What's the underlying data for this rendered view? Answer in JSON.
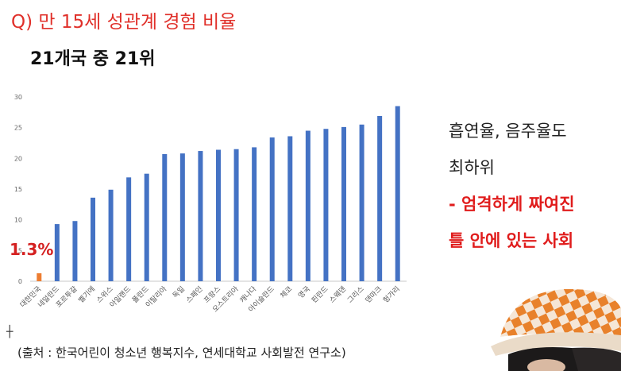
{
  "question": "Q) 만 15세 성관계 경험 비율",
  "subtitle": "21개국 중 21위",
  "highlight_label": "1.3%",
  "source": "(출처 : 한국어린이 청소년 행복지수, 연세대학교 사회발전 연구소)",
  "notes": [
    "흡연율, 음주율도",
    "최하위",
    "- 엄격하게 짜여진",
    "틀 안에 있는 사회"
  ],
  "colors": {
    "question": "#e0302a",
    "bar": "#4472c4",
    "highlight_bar": "#ed7d31",
    "emphasis": "#e01c1c"
  },
  "chart_data": {
    "type": "bar",
    "categories": [
      "대한민국",
      "네덜란드",
      "포르투갈",
      "벨기에",
      "스위스",
      "아일랜드",
      "폴란드",
      "이탈리아",
      "독일",
      "스페인",
      "프랑스",
      "오스트리아",
      "캐나다",
      "아이슬란드",
      "체코",
      "영국",
      "핀란드",
      "스웨덴",
      "그리스",
      "덴마크",
      "헝가리"
    ],
    "values": [
      1.3,
      9.3,
      9.8,
      13.6,
      14.9,
      16.9,
      17.5,
      20.7,
      20.8,
      21.2,
      21.4,
      21.5,
      21.8,
      23.4,
      23.6,
      24.5,
      24.8,
      25.1,
      25.5,
      26.9,
      28.5
    ],
    "highlight_index": 0,
    "yticks": [
      0,
      5,
      10,
      15,
      20,
      25,
      30
    ],
    "ylim": [
      0,
      30
    ],
    "grid": false,
    "legend": "none"
  }
}
